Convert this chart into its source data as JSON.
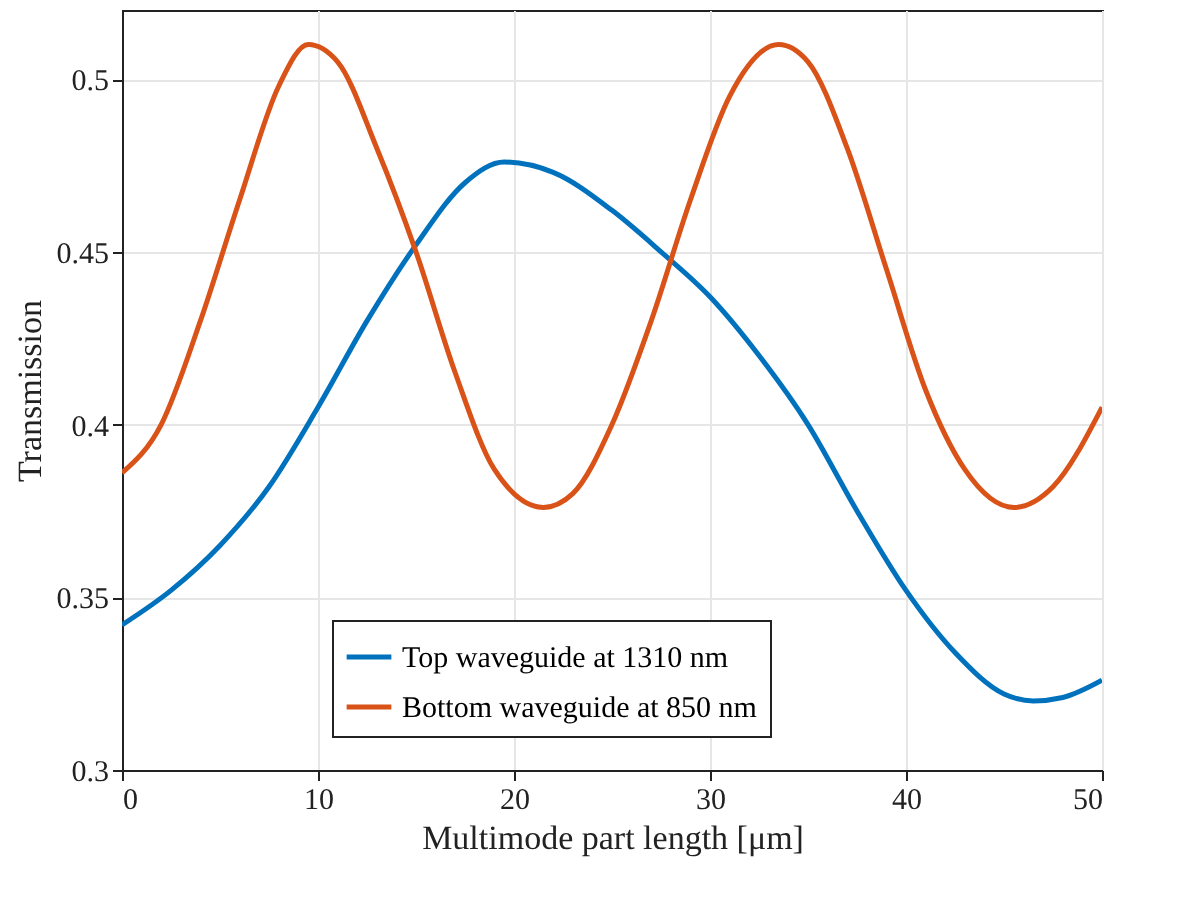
{
  "chart_data": {
    "type": "line",
    "xlabel": "Multimode part length [μm]",
    "ylabel": "Transmission",
    "xlim": [
      0,
      50
    ],
    "xticks": [
      0,
      10,
      20,
      30,
      40,
      50
    ],
    "ylim": [
      0.3,
      0.52
    ],
    "yticks": [
      0.3,
      0.35,
      0.4,
      0.45,
      0.5
    ],
    "grid": true,
    "legend": "bottom",
    "line_style": "solid",
    "marker": "none",
    "series": [
      {
        "name": "Top waveguide at 1310 nm",
        "color": "#0072bd",
        "x": [
          0,
          2.5,
          5,
          7.5,
          10,
          12.5,
          15,
          17.5,
          19.5,
          22,
          25,
          27.5,
          30,
          32.5,
          35,
          37.5,
          40,
          42.5,
          45,
          46.5,
          48,
          50
        ],
        "values": [
          0.342,
          0.352,
          0.365,
          0.382,
          0.405,
          0.43,
          0.452,
          0.47,
          0.476,
          0.473,
          0.462,
          0.45,
          0.437,
          0.42,
          0.4,
          0.375,
          0.352,
          0.334,
          0.322,
          0.32,
          0.321,
          0.326
        ]
      },
      {
        "name": "Bottom waveguide at 850 nm",
        "color": "#d95319",
        "x": [
          0,
          2,
          4,
          6,
          8,
          9.5,
          11,
          13,
          15,
          17,
          19,
          21.5,
          23,
          25,
          27,
          29,
          31,
          33.5,
          35,
          37,
          39,
          41,
          43,
          45.5,
          47.5,
          50
        ],
        "values": [
          0.386,
          0.4,
          0.43,
          0.465,
          0.498,
          0.51,
          0.505,
          0.48,
          0.45,
          0.415,
          0.387,
          0.376,
          0.38,
          0.4,
          0.43,
          0.465,
          0.495,
          0.51,
          0.505,
          0.48,
          0.445,
          0.41,
          0.387,
          0.376,
          0.382,
          0.405
        ]
      }
    ]
  }
}
